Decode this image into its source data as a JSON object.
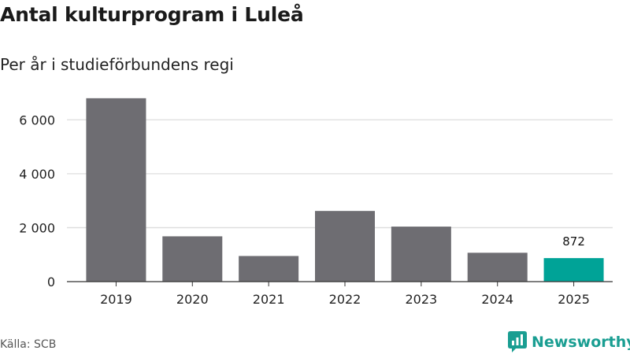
{
  "title": "Antal kulturprogram i Luleå",
  "subtitle": "Per år i studieförbundens regi",
  "source": "Källa: SCB",
  "brand": "Newsworthy",
  "colors": {
    "bar": "#6e6d72",
    "highlight": "#00a397",
    "grid": "#dddddd",
    "axis": "#333333",
    "brand": "#1a9e92"
  },
  "chart_data": {
    "type": "bar",
    "title": "Antal kulturprogram i Luleå",
    "subtitle": "Per år i studieförbundens regi",
    "xlabel": "",
    "ylabel": "",
    "categories": [
      "2019",
      "2020",
      "2021",
      "2022",
      "2023",
      "2024",
      "2025"
    ],
    "values": [
      6800,
      1680,
      950,
      2620,
      2040,
      1070,
      872
    ],
    "highlight_index": 6,
    "data_labels": [
      {
        "index": 6,
        "text": "872"
      }
    ],
    "yticks": [
      0,
      2000,
      4000,
      6000
    ],
    "ytick_labels": [
      "0",
      "2 000",
      "4 000",
      "6 000"
    ],
    "ylim": [
      0,
      7000
    ],
    "grid": true,
    "legend": "none"
  }
}
